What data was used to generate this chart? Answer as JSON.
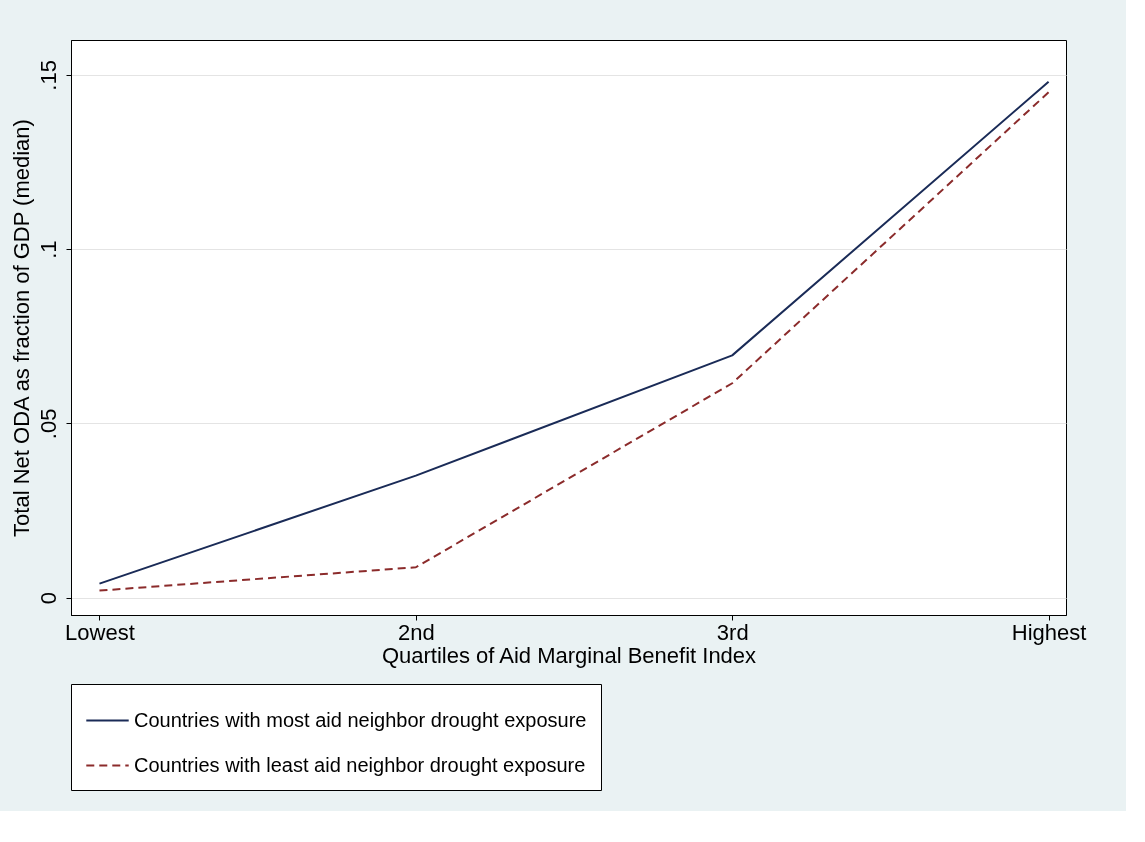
{
  "chart_data": {
    "type": "line",
    "xlabel": "Quartiles of Aid Marginal Benefit Index",
    "ylabel": "Total Net ODA as fraction of GDP (median)",
    "categories": [
      "Lowest",
      "2nd",
      "3rd",
      "Highest"
    ],
    "series": [
      {
        "name": "Countries with most aid neighbor drought exposure",
        "color": "#1a2b57",
        "line_style": "solid",
        "values": [
          0.004,
          0.035,
          0.0695,
          0.148
        ]
      },
      {
        "name": "Countries with least aid neighbor drought exposure",
        "color": "#8b2b2b",
        "line_style": "dashed",
        "values": [
          0.002,
          0.0087,
          0.0615,
          0.145
        ]
      }
    ],
    "ylim": [
      -0.005,
      0.16
    ],
    "yticks": [
      {
        "value": 0,
        "label": "0"
      },
      {
        "value": 0.05,
        "label": ".05"
      },
      {
        "value": 0.1,
        "label": ".1"
      },
      {
        "value": 0.15,
        "label": ".15"
      }
    ],
    "grid": "y",
    "legend": "bottom",
    "marker": "none"
  }
}
